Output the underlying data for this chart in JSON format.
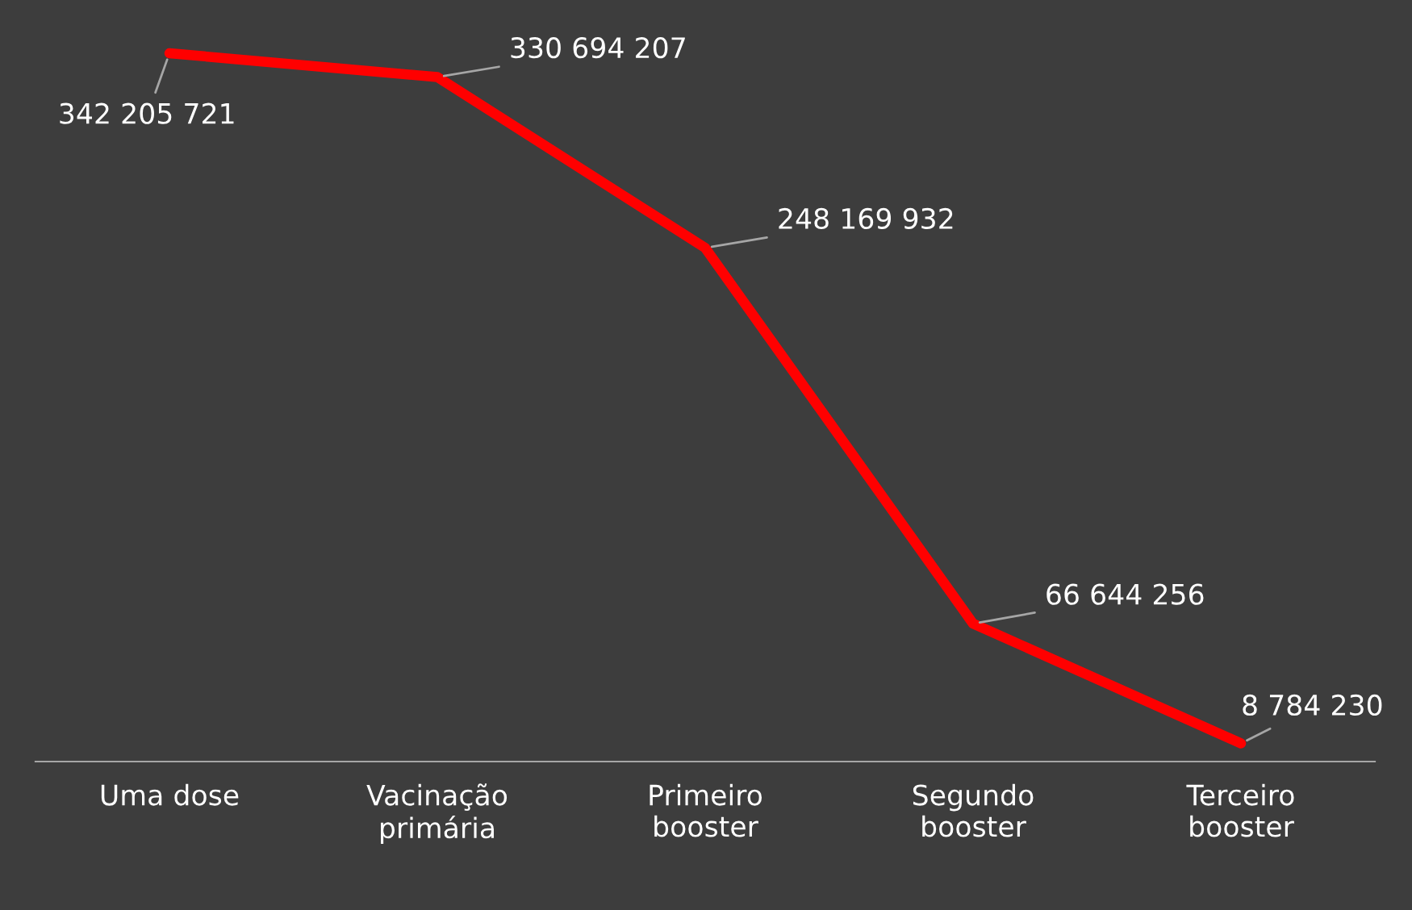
{
  "chart_data": {
    "type": "line",
    "categories": [
      "Uma dose",
      "Vacinação\nprimária",
      "Primeiro\nbooster",
      "Segundo\nbooster",
      "Terceiro\nbooster"
    ],
    "series": [
      {
        "color": "#ff0000",
        "values": [
          342205721,
          330694207,
          248169932,
          66644256,
          8784230
        ],
        "value_labels": [
          "342 205 721",
          "330 694 207",
          "248 169 932",
          "66 644 256",
          "8 784 230"
        ]
      }
    ],
    "grid": false,
    "marker": "none",
    "line_style": "solid"
  }
}
